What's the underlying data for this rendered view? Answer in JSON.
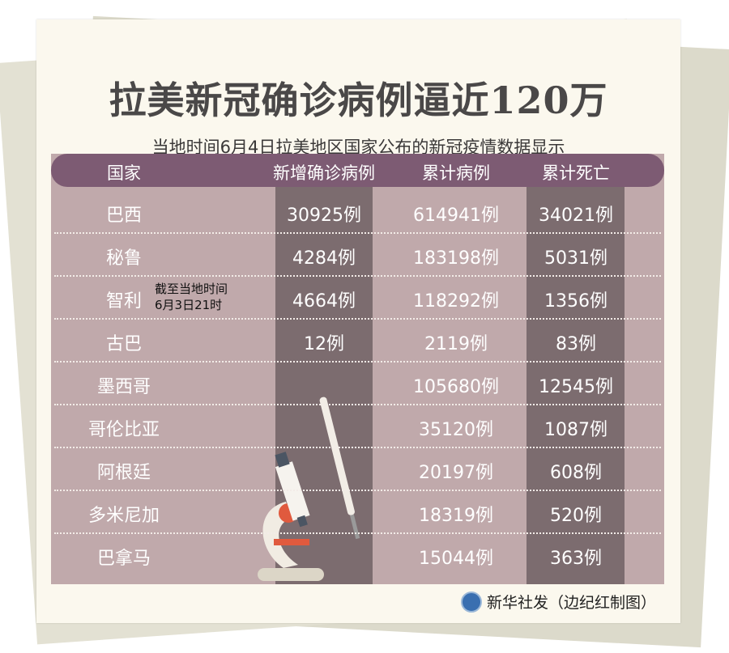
{
  "title": "拉美新冠确诊病例逼近120万",
  "subtitle": "当地时间6月4日拉美地区国家公布的新冠疫情数据显示",
  "table": {
    "headers": [
      "国家",
      "新增确诊病例",
      "累计病例",
      "累计死亡"
    ],
    "rows": [
      {
        "country": "巴西",
        "new": "30925例",
        "total": "614941例",
        "deaths": "34021例",
        "note": ""
      },
      {
        "country": "秘鲁",
        "new": "4284例",
        "total": "183198例",
        "deaths": "5031例",
        "note": ""
      },
      {
        "country": "智利",
        "new": "4664例",
        "total": "118292例",
        "deaths": "1356例",
        "note": "截至当地时间\n6月3日21时"
      },
      {
        "country": "古巴",
        "new": "12例",
        "total": "2119例",
        "deaths": "83例",
        "note": ""
      },
      {
        "country": "墨西哥",
        "new": "",
        "total": "105680例",
        "deaths": "12545例",
        "note": ""
      },
      {
        "country": "哥伦比亚",
        "new": "",
        "total": "35120例",
        "deaths": "1087例",
        "note": ""
      },
      {
        "country": "阿根廷",
        "new": "",
        "total": "20197例",
        "deaths": "608例",
        "note": ""
      },
      {
        "country": "多米尼加",
        "new": "",
        "total": "18319例",
        "deaths": "520例",
        "note": ""
      },
      {
        "country": "巴拿马",
        "new": "",
        "total": "15044例",
        "deaths": "363例",
        "note": ""
      }
    ]
  },
  "footer": {
    "credit": "新华社发（边纪红制图）",
    "logo_icon": "xinhua-logo-icon"
  },
  "colors": {
    "header": "#7d5b73",
    "body": "#c0a9ab",
    "dark_column": "#7c6c6f",
    "card": "#fbf8ee"
  }
}
